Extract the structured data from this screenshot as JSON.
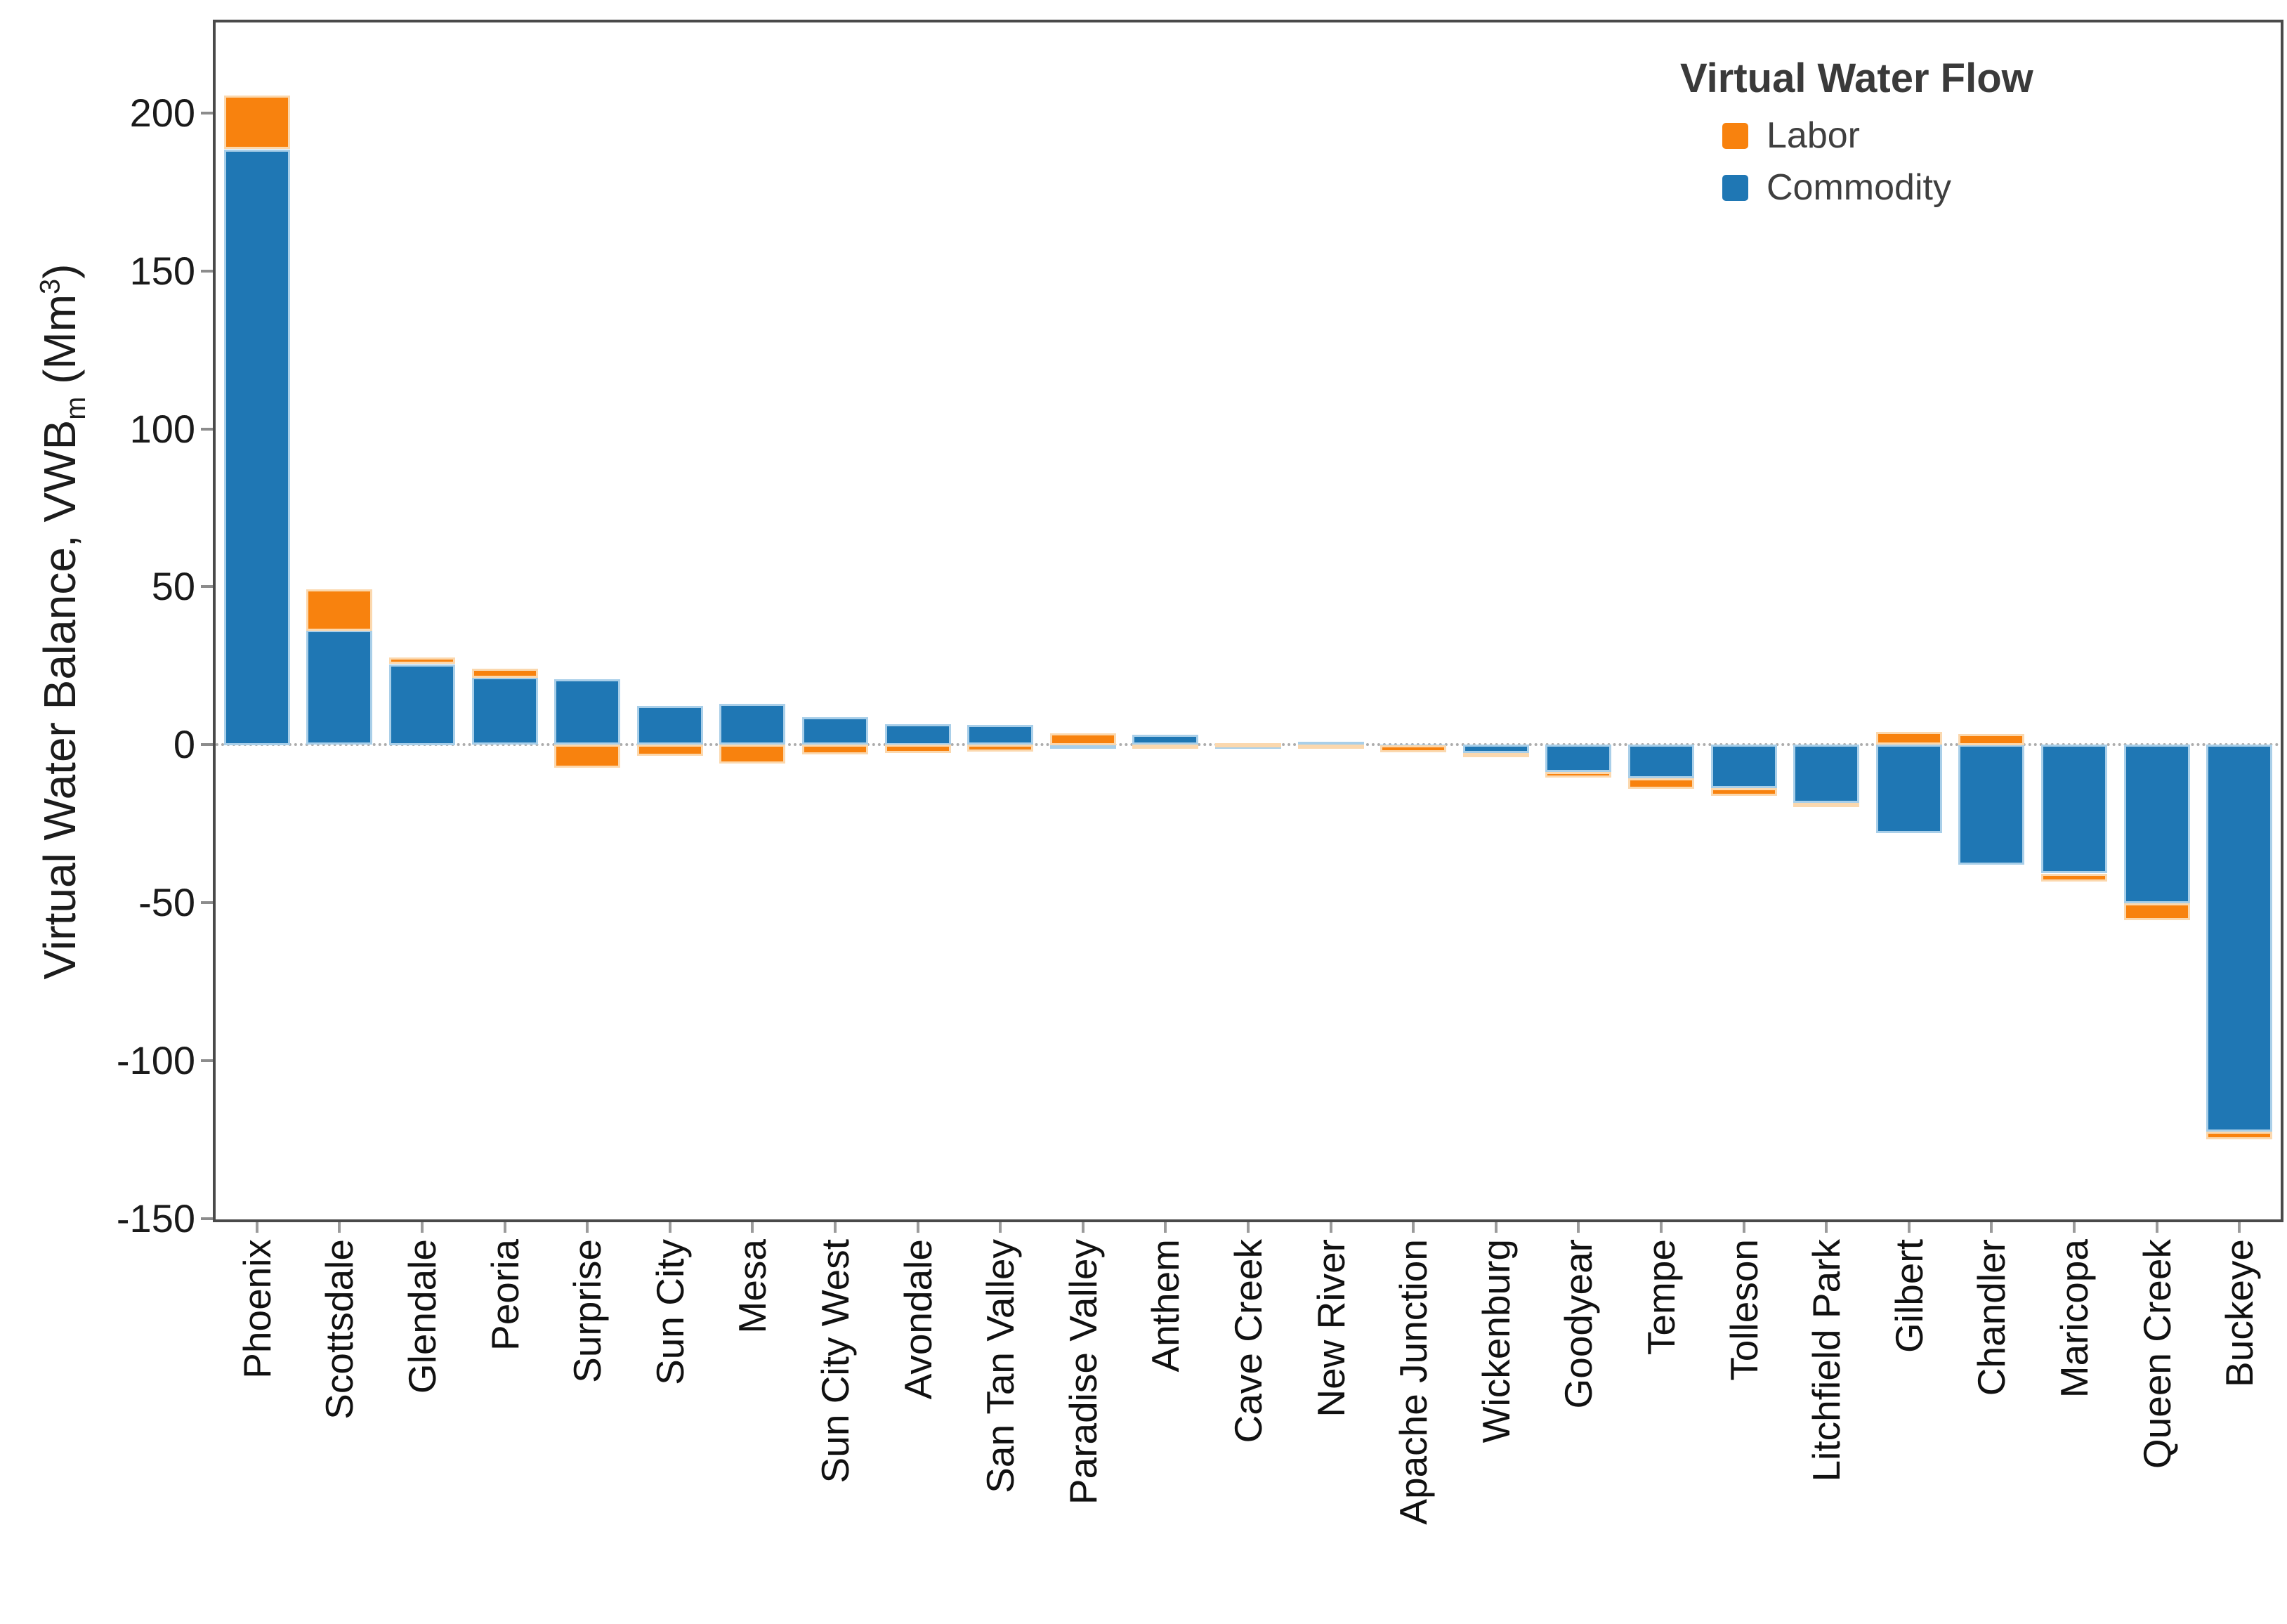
{
  "y_axis": {
    "title_pre": "Virtual Water Balance, VWB",
    "title_sub": "m",
    "title_mid": " (Mm",
    "title_sup": "3",
    "title_post": ")",
    "ticks": [
      200,
      150,
      100,
      50,
      0,
      -50,
      -100,
      -150
    ]
  },
  "legend": {
    "title": "Virtual Water Flow",
    "items": [
      {
        "label": "Labor",
        "color": "#F8820E"
      },
      {
        "label": "Commodity",
        "color": "#1F77B4"
      }
    ]
  },
  "chart_data": {
    "type": "bar",
    "stacked": true,
    "title": "",
    "xlabel": "",
    "ylabel": "Virtual Water Balance, VWBm (Mm3)",
    "ylim": [
      -150.3,
      228.7
    ],
    "grid": false,
    "zero_line": "dotted",
    "legend_position": "top-right",
    "bar_width_fraction": 0.8,
    "stack_order": [
      "Commodity",
      "Labor"
    ],
    "categories": [
      "Phoenix",
      "Scottsdale",
      "Glendale",
      "Peoria",
      "Surprise",
      "Sun City",
      "Mesa",
      "Sun City West",
      "Avondale",
      "San Tan Valley",
      "Paradise Valley",
      "Anthem",
      "Cave Creek",
      "New River",
      "Apache Junction",
      "Wickenburg",
      "Goodyear",
      "Tempe",
      "Tolleson",
      "Litchfield Park",
      "Gilbert",
      "Chandler",
      "Maricopa",
      "Queen Creek",
      "Buckeye"
    ],
    "series": [
      {
        "name": "Labor",
        "color": "#F8820E",
        "edge": "#FBD8AE",
        "values": [
          17.0,
          13.1,
          2.1,
          2.8,
          -7.3,
          -3.6,
          -5.9,
          -3.2,
          -2.6,
          -2.3,
          3.7,
          -1.4,
          0.6,
          -0.4,
          -2.3,
          -0.7,
          -1.8,
          -3.4,
          -2.5,
          -1.0,
          4.0,
          3.5,
          -2.5,
          -5.4,
          -2.5
        ]
      },
      {
        "name": "Commodity",
        "color": "#1F77B4",
        "edge": "#A9CFE9",
        "values": [
          188.5,
          36.2,
          25.5,
          21.3,
          20.7,
          12.3,
          12.9,
          8.7,
          6.6,
          6.2,
          -0.8,
          3.1,
          -0.2,
          1.0,
          -0.1,
          -2.7,
          -8.7,
          -10.7,
          -13.8,
          -18.5,
          -28.0,
          -38.0,
          -40.8,
          -50.2,
          -122.5
        ]
      }
    ]
  },
  "colors": {
    "frame": "#4A4A4A",
    "zero_line": "#ADADAD",
    "tick_text": "#1A1A1A",
    "labor": "#F8820E",
    "commodity": "#1F77B4"
  }
}
